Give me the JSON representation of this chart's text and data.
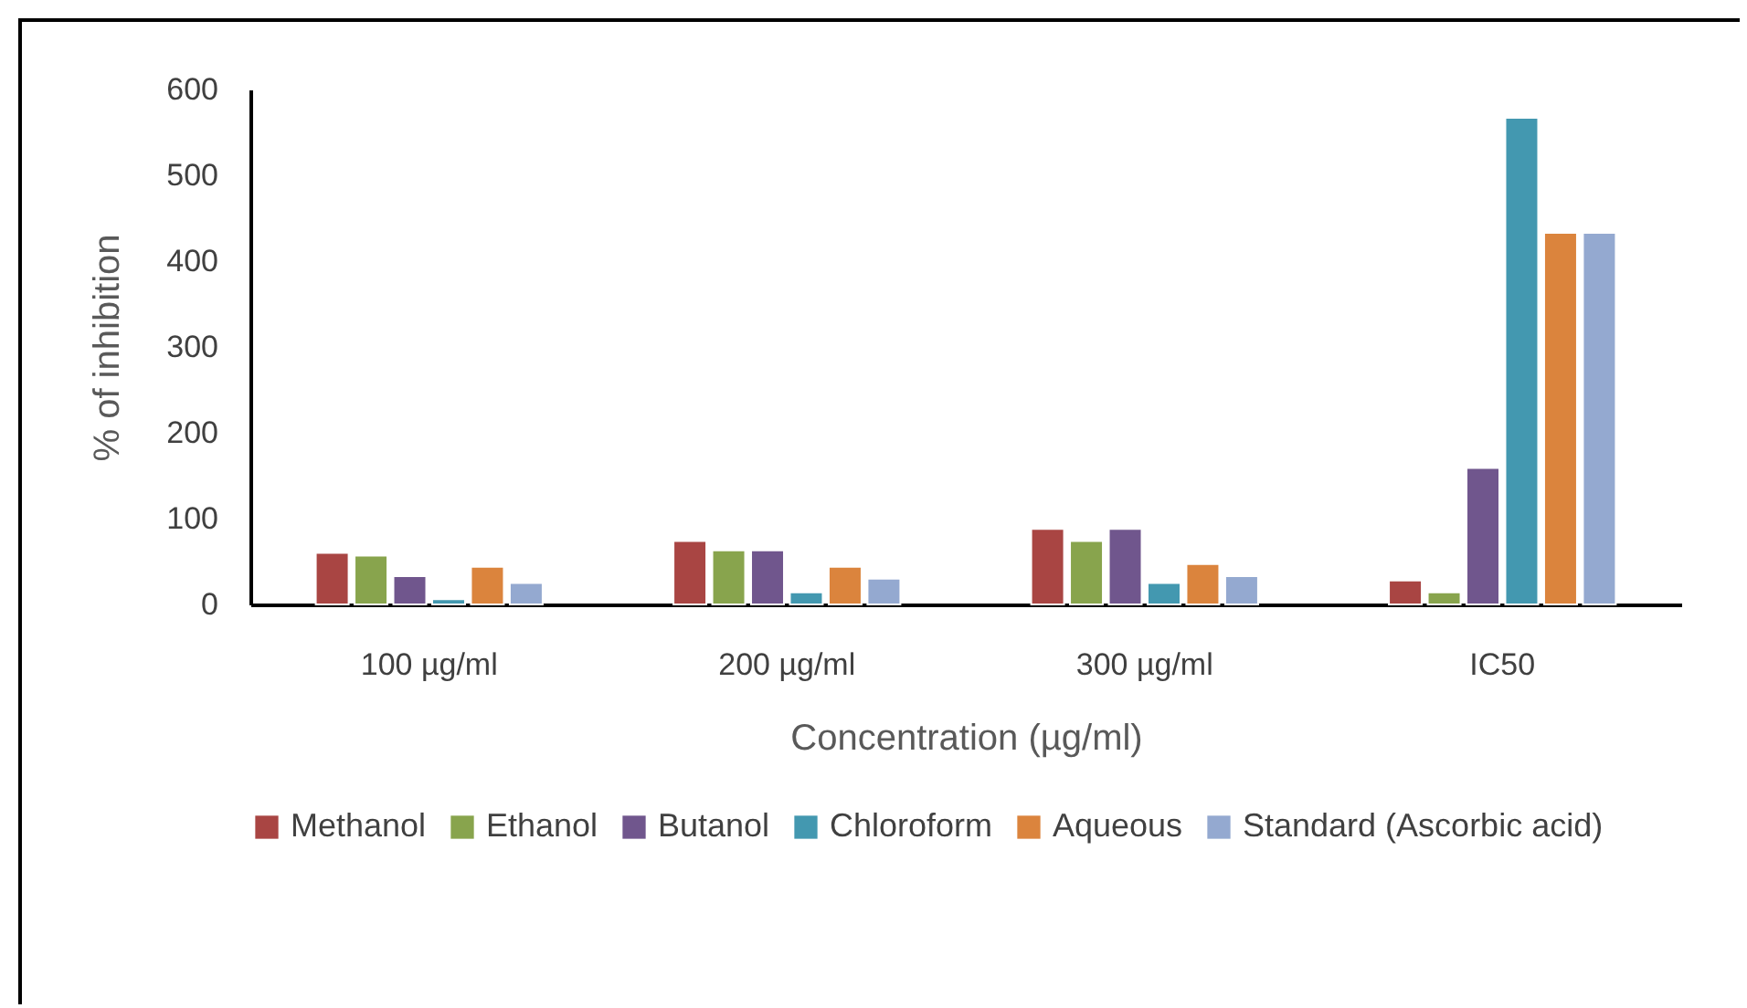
{
  "chart_data": {
    "type": "bar",
    "xlabel": "Concentration (µg/ml)",
    "ylabel": "% of inhibition",
    "categories": [
      "100 µg/ml",
      "200 µg/ml",
      "300 µg/ml",
      "IC50"
    ],
    "series": [
      {
        "name": "Methanol",
        "color": "#a94543",
        "values": [
          60,
          74,
          88,
          28
        ]
      },
      {
        "name": "Ethanol",
        "color": "#88a44d",
        "values": [
          57,
          63,
          74,
          14
        ]
      },
      {
        "name": "Butanol",
        "color": "#70568d",
        "values": [
          33,
          63,
          88,
          159
        ]
      },
      {
        "name": "Chloroform",
        "color": "#4398b0",
        "values": [
          6,
          14,
          25,
          567
        ]
      },
      {
        "name": "Aqueous",
        "color": "#db843d",
        "values": [
          44,
          44,
          47,
          433
        ]
      },
      {
        "name": "Standard (Ascorbic acid)",
        "color": "#94a9d0",
        "values": [
          25,
          30,
          33,
          433
        ]
      }
    ],
    "ylim": [
      0,
      600
    ],
    "yticks": [
      0,
      100,
      200,
      300,
      400,
      500,
      600
    ],
    "grid": false,
    "legend": "bottom"
  }
}
